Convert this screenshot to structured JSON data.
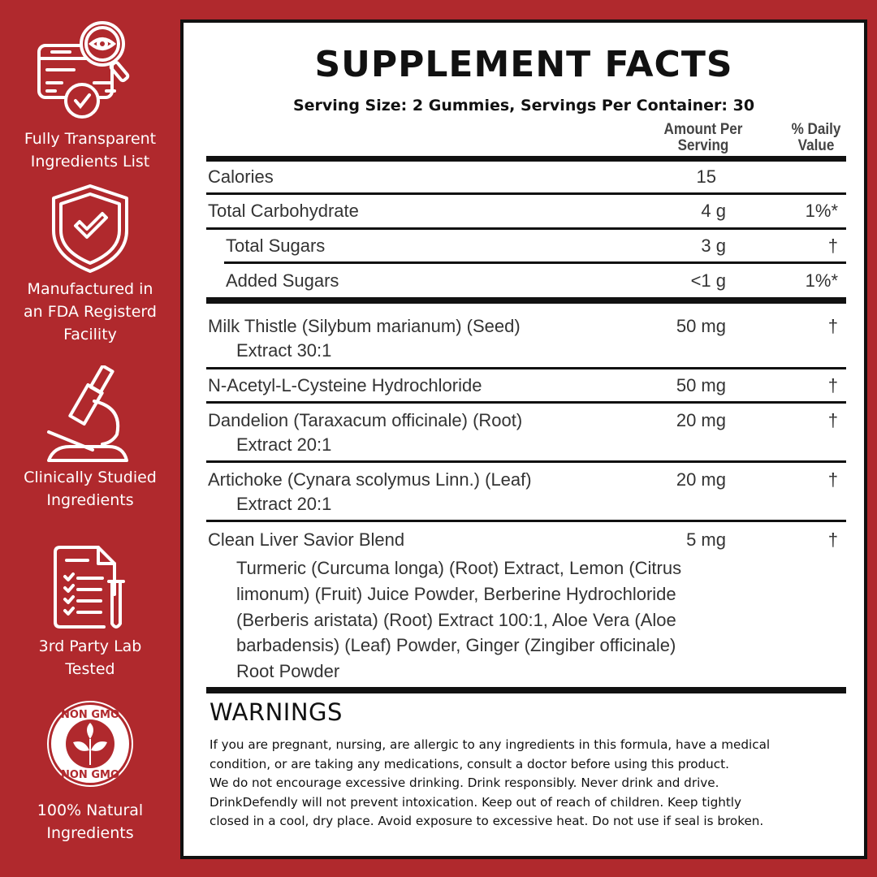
{
  "colors": {
    "background": "#b0292d",
    "panel": "#ffffff",
    "text": "#111111"
  },
  "features": [
    {
      "icon": "document-magnifier-eye-check-icon",
      "label_lines": [
        "Fully Transparent",
        "Ingredients List"
      ]
    },
    {
      "icon": "shield-check-icon",
      "label_lines": [
        "Manufactured in",
        "an FDA Registerd",
        "Facility"
      ]
    },
    {
      "icon": "microscope-icon",
      "label_lines": [
        "Clinically Studied",
        "Ingredients"
      ]
    },
    {
      "icon": "checklist-test-tube-icon",
      "label_lines": [
        "3rd Party Lab",
        "Tested"
      ]
    },
    {
      "icon": "non-gmo-badge-icon",
      "badge_text": "NON GMO",
      "label_lines": [
        "100% Natural",
        "Ingredients"
      ]
    }
  ],
  "facts": {
    "title": "SUPPLEMENT FACTS",
    "serving": "Serving Size: 2 Gummies, Servings Per Container: 30",
    "col_amount": [
      "Amount Per",
      "Serving"
    ],
    "col_dv": [
      "% Daily",
      "Value"
    ],
    "rows": [
      {
        "name": "Calories",
        "amount": "15",
        "dv": ""
      },
      {
        "name": "Total Carbohydrate",
        "amount": "4 g",
        "dv": "1%*"
      },
      {
        "name": "Total Sugars",
        "amount": "3 g",
        "dv": "†"
      },
      {
        "name": "Added Sugars",
        "amount": "<1 g",
        "dv": "1%*"
      },
      {
        "name": "Milk Thistle (Silybum marianum) (Seed)",
        "sub": "Extract 30:1",
        "amount": "50 mg",
        "dv": "†"
      },
      {
        "name": "N-Acetyl-L-Cysteine Hydrochloride",
        "amount": "50 mg",
        "dv": "†"
      },
      {
        "name": "Dandelion (Taraxacum officinale) (Root)",
        "sub": "Extract 20:1",
        "amount": "20 mg",
        "dv": "†"
      },
      {
        "name": "Artichoke (Cynara scolymus Linn.) (Leaf)",
        "sub": "Extract 20:1",
        "amount": "20 mg",
        "dv": "†"
      },
      {
        "name": "Clean Liver Savior Blend",
        "amount": "5 mg",
        "dv": "†"
      }
    ],
    "blend_lines": [
      "Turmeric (Curcuma longa) (Root) Extract, Lemon (Citrus",
      "limonum) (Fruit) Juice Powder, Berberine Hydrochloride",
      "(Berberis aristata) (Root) Extract 100:1, Aloe Vera (Aloe",
      "barbadensis) (Leaf) Powder, Ginger (Zingiber officinale)",
      "Root Powder"
    ]
  },
  "warnings": {
    "heading": "WARNINGS",
    "lines": [
      "If you are pregnant, nursing, are allergic to any ingredients in this formula, have a medical",
      "condition, or are taking any medications, consult a doctor before using this product.",
      "We do not encourage excessive drinking. Drink responsibly. Never drink and drive.",
      "DrinkDefendly will not prevent intoxication. Keep out of reach of children. Keep tightly",
      "closed in a cool, dry place. Avoid exposure to excessive heat. Do not use if seal is broken."
    ]
  }
}
